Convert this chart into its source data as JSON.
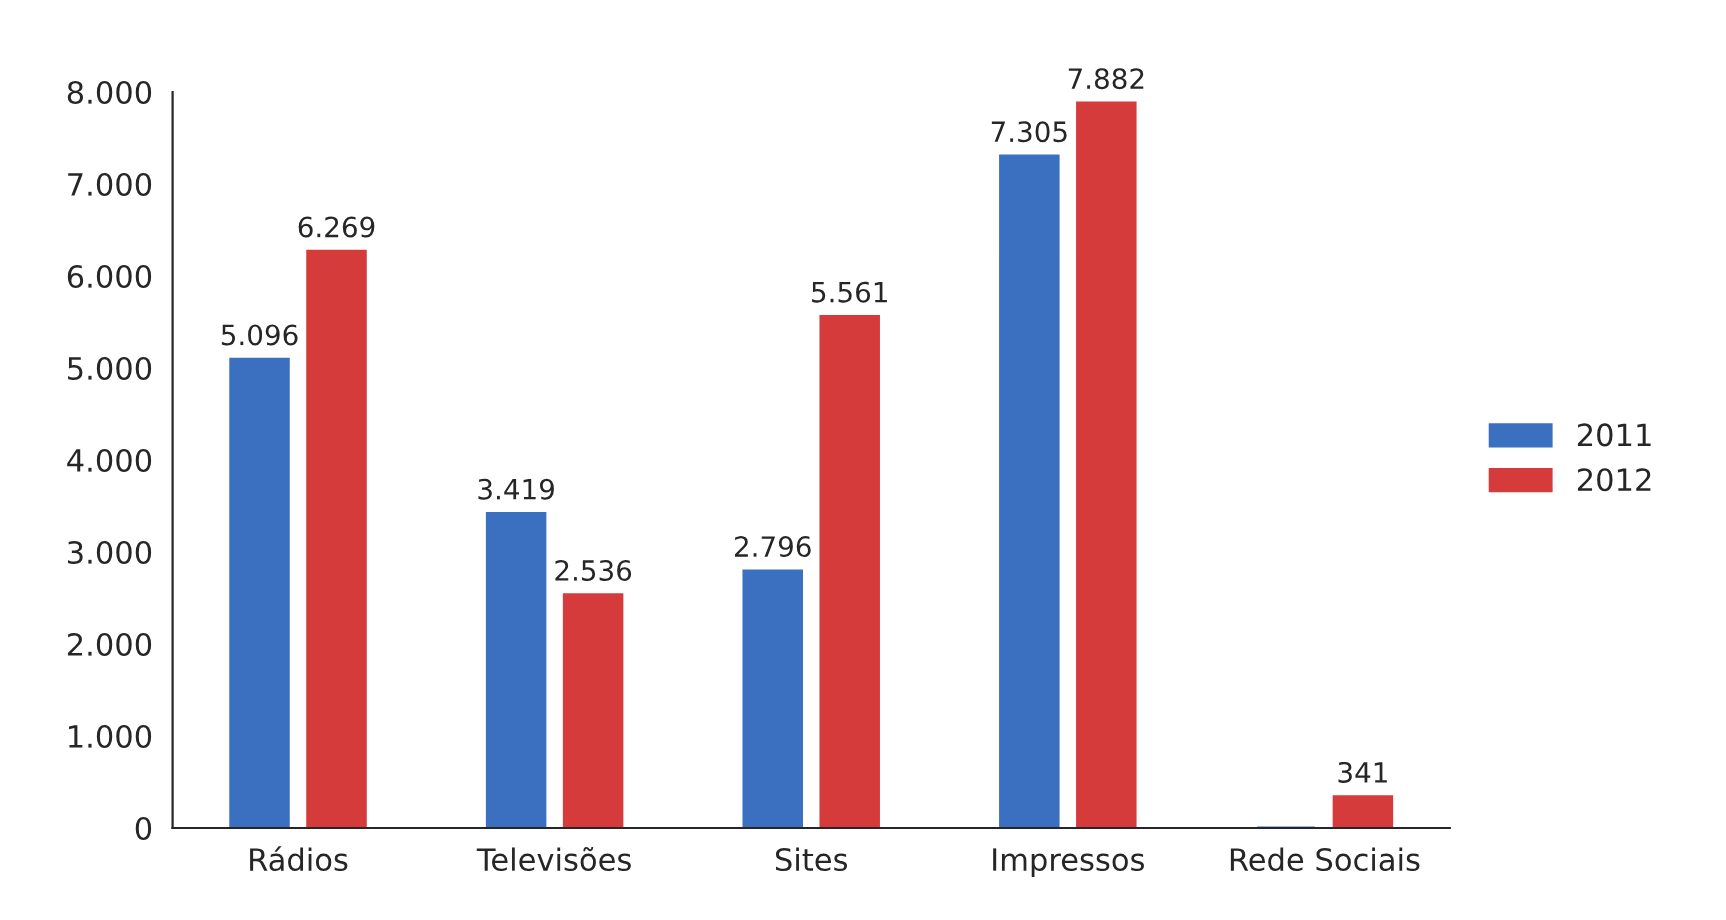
{
  "chart_data": {
    "type": "bar",
    "categories": [
      "Rádios",
      "Televisões",
      "Sites",
      "Impressos",
      "Rede Sociais"
    ],
    "series": [
      {
        "name": "2011",
        "color": "#3b70c0",
        "values": [
          5096,
          3419,
          2796,
          7305,
          0
        ],
        "value_labels": [
          "5.096",
          "3.419",
          "2.796",
          "7.305",
          null
        ]
      },
      {
        "name": "2012",
        "color": "#d63b3b",
        "values": [
          6269,
          2536,
          5561,
          7882,
          341
        ],
        "value_labels": [
          "6.269",
          "2.536",
          "5.561",
          "7.882",
          "341"
        ]
      }
    ],
    "ylim": [
      0,
      8000
    ],
    "yticks": [
      0,
      {
        "value": 1000,
        "label": "1.000"
      },
      {
        "value": 2000,
        "label": "2.000"
      },
      {
        "value": 3000,
        "label": "3.000"
      },
      {
        "value": 4000,
        "label": "4.000"
      },
      {
        "value": 5000,
        "label": "5.000"
      },
      {
        "value": 6000,
        "label": "6.000"
      },
      {
        "value": 7000,
        "label": "7.000"
      },
      {
        "value": 8000,
        "label": "8.000"
      }
    ],
    "grid": false,
    "legend": "right"
  }
}
